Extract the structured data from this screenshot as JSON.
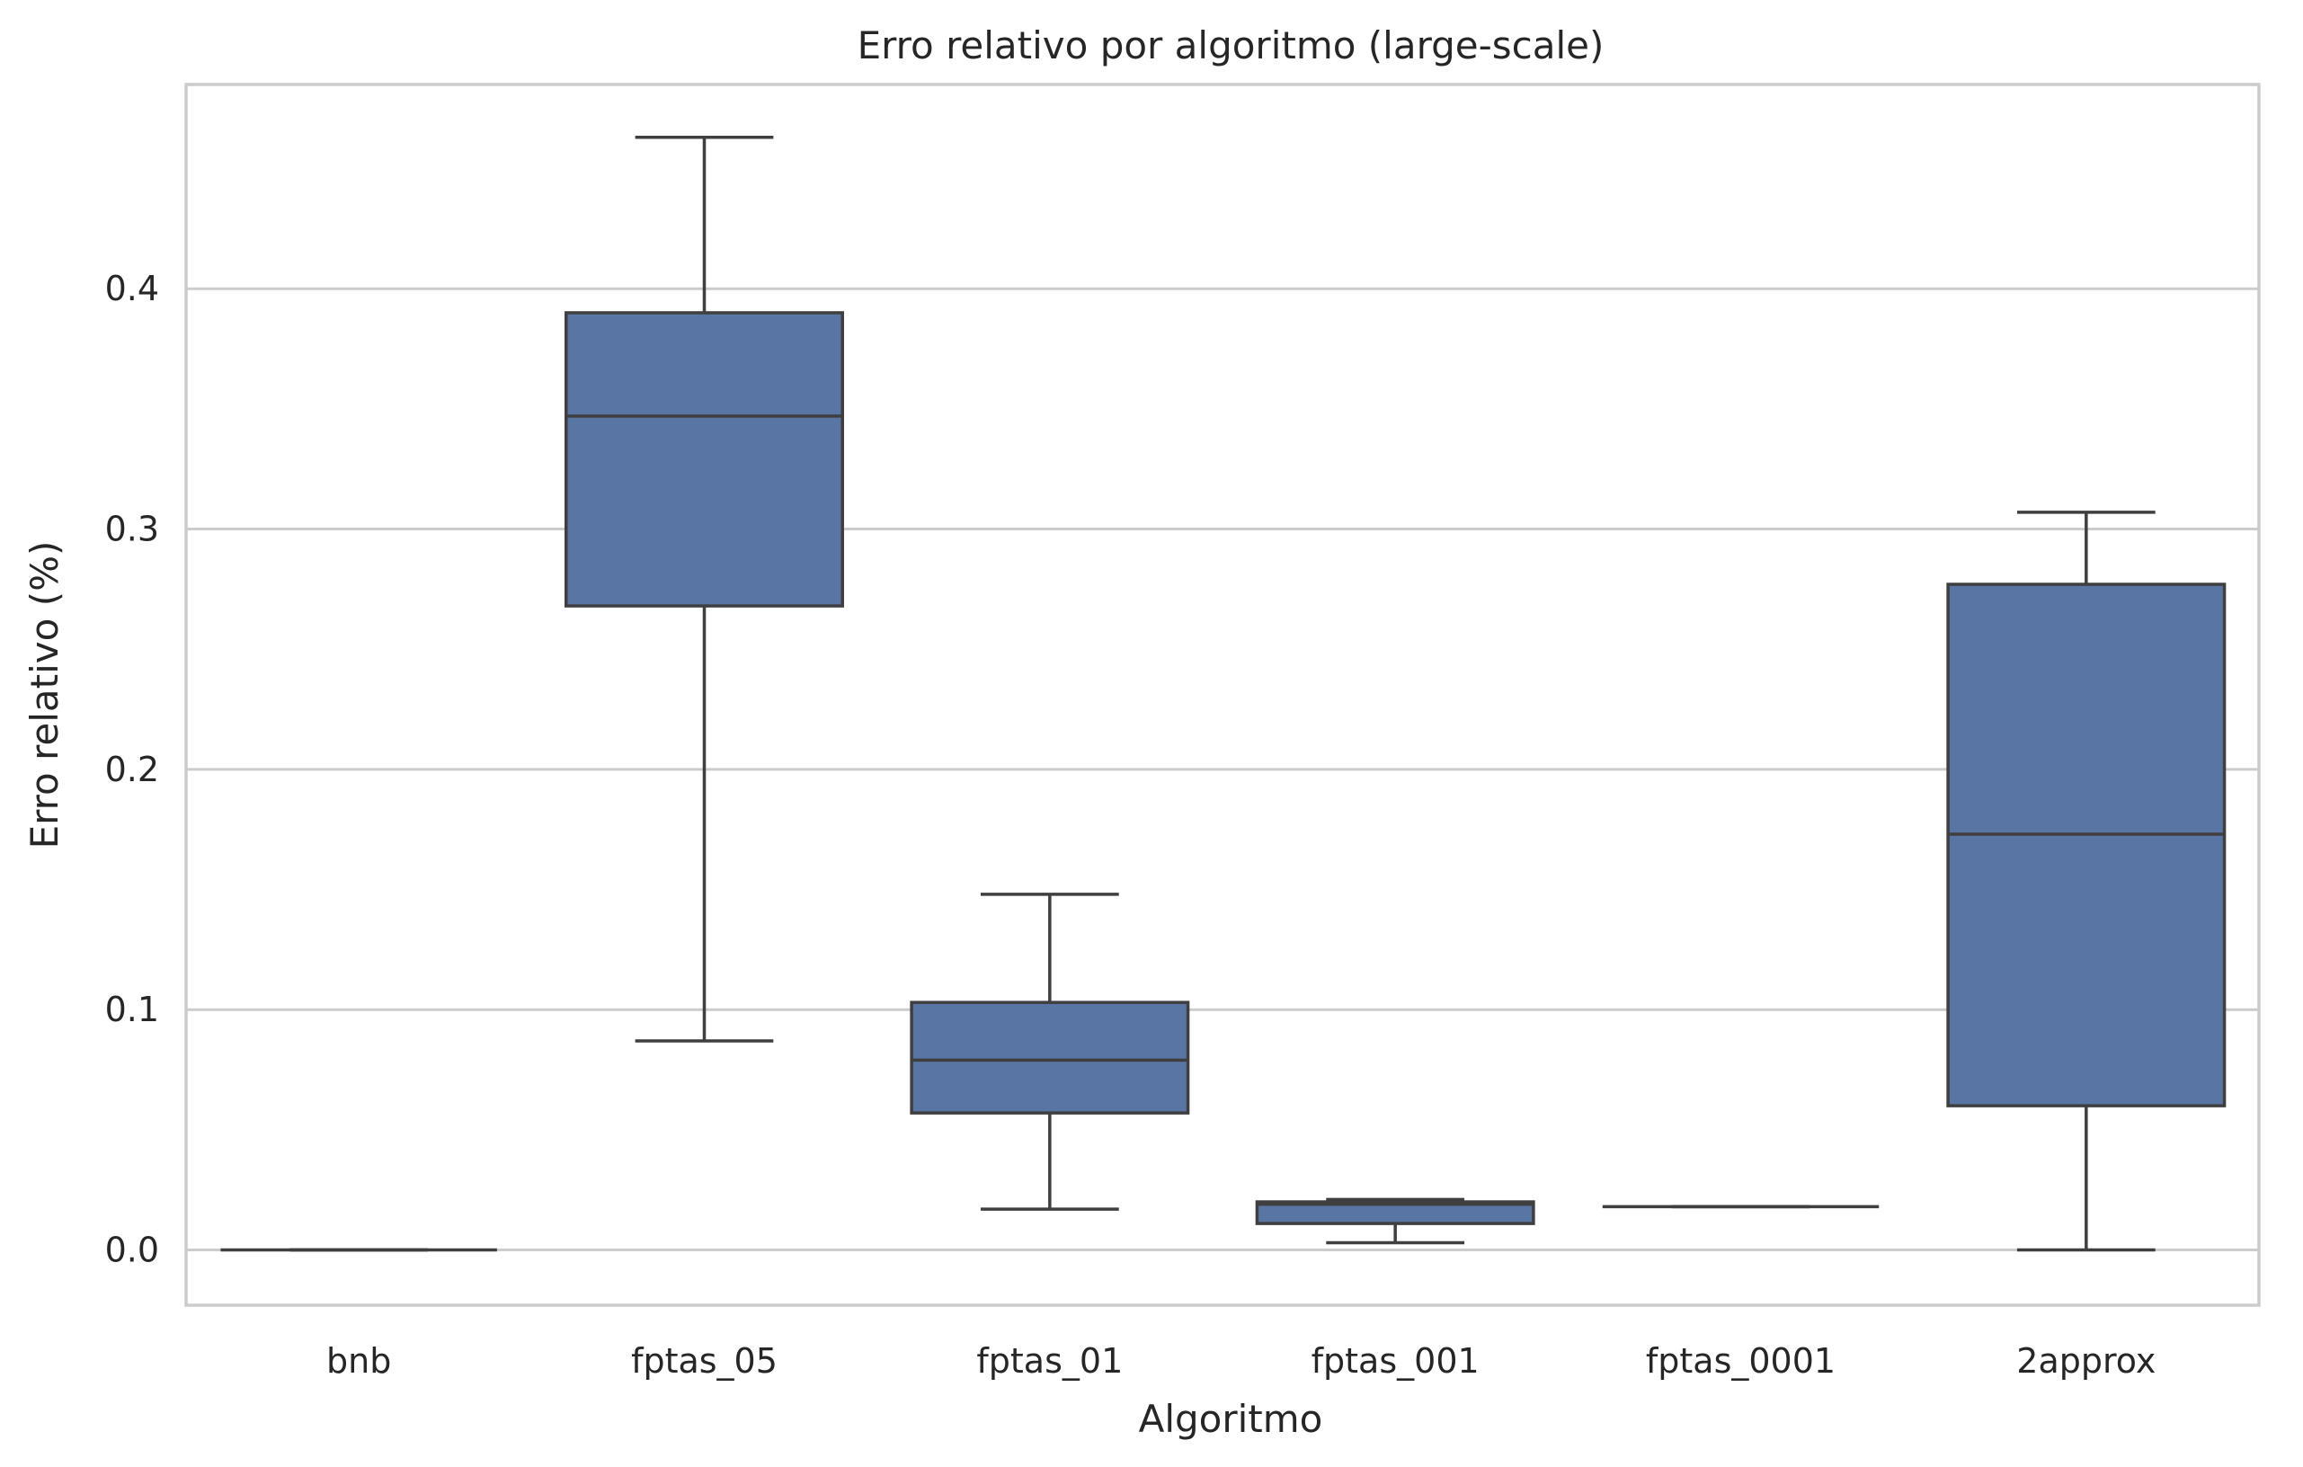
{
  "chart_data": {
    "type": "box",
    "title": "Erro relativo por algoritmo (large-scale)",
    "xlabel": "Algoritmo",
    "ylabel": "Erro relativo (%)",
    "ylim": [
      -0.023,
      0.485
    ],
    "yticks": [
      0.0,
      0.1,
      0.2,
      0.3,
      0.4
    ],
    "ytick_labels": [
      "0.0",
      "0.1",
      "0.2",
      "0.3",
      "0.4"
    ],
    "grid": true,
    "box_color": "#5875a4",
    "line_color": "#3f3f3f",
    "categories": [
      "bnb",
      "fptas_05",
      "fptas_01",
      "fptas_001",
      "fptas_0001",
      "2approx"
    ],
    "boxes": [
      {
        "min": 0.0,
        "q1": 0.0,
        "median": 0.0,
        "q3": 0.0,
        "max": 0.0
      },
      {
        "min": 0.087,
        "q1": 0.268,
        "median": 0.347,
        "q3": 0.39,
        "max": 0.463
      },
      {
        "min": 0.017,
        "q1": 0.057,
        "median": 0.079,
        "q3": 0.103,
        "max": 0.148
      },
      {
        "min": 0.003,
        "q1": 0.011,
        "median": 0.019,
        "q3": 0.02,
        "max": 0.021
      },
      {
        "min": 0.018,
        "q1": 0.018,
        "median": 0.018,
        "q3": 0.018,
        "max": 0.018
      },
      {
        "min": 0.0,
        "q1": 0.06,
        "median": 0.173,
        "q3": 0.277,
        "max": 0.307
      }
    ]
  }
}
